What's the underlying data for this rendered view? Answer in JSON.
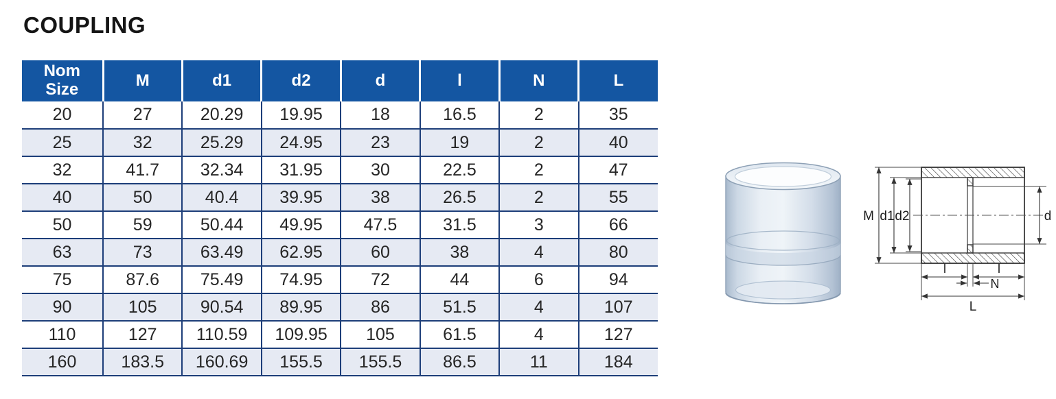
{
  "title": "COUPLING",
  "colors": {
    "header_bg": "#1456a2",
    "table_border": "#1d3e79",
    "row_stripe": "#e6eaf3",
    "header_text": "#ffffff",
    "body_text": "#262626"
  },
  "table": {
    "columns": [
      "Nom Size",
      "M",
      "d1",
      "d2",
      "d",
      "l",
      "N",
      "L"
    ],
    "rows": [
      [
        "20",
        "27",
        "20.29",
        "19.95",
        "18",
        "16.5",
        "2",
        "35"
      ],
      [
        "25",
        "32",
        "25.29",
        "24.95",
        "23",
        "19",
        "2",
        "40"
      ],
      [
        "32",
        "41.7",
        "32.34",
        "31.95",
        "30",
        "22.5",
        "2",
        "47"
      ],
      [
        "40",
        "50",
        "40.4",
        "39.95",
        "38",
        "26.5",
        "2",
        "55"
      ],
      [
        "50",
        "59",
        "50.44",
        "49.95",
        "47.5",
        "31.5",
        "3",
        "66"
      ],
      [
        "63",
        "73",
        "63.49",
        "62.95",
        "60",
        "38",
        "4",
        "80"
      ],
      [
        "75",
        "87.6",
        "75.49",
        "74.95",
        "72",
        "44",
        "6",
        "94"
      ],
      [
        "90",
        "105",
        "90.54",
        "89.95",
        "86",
        "51.5",
        "4",
        "107"
      ],
      [
        "110",
        "127",
        "110.59",
        "109.95",
        "105",
        "61.5",
        "4",
        "127"
      ],
      [
        "160",
        "183.5",
        "160.69",
        "155.5",
        "155.5",
        "86.5",
        "11",
        "184"
      ]
    ]
  },
  "diagram": {
    "labels": {
      "M": "M",
      "d1": "d1",
      "d2": "d2",
      "d": "d",
      "l_left": "l",
      "l_right": "l",
      "N": "N",
      "L": "L"
    }
  }
}
